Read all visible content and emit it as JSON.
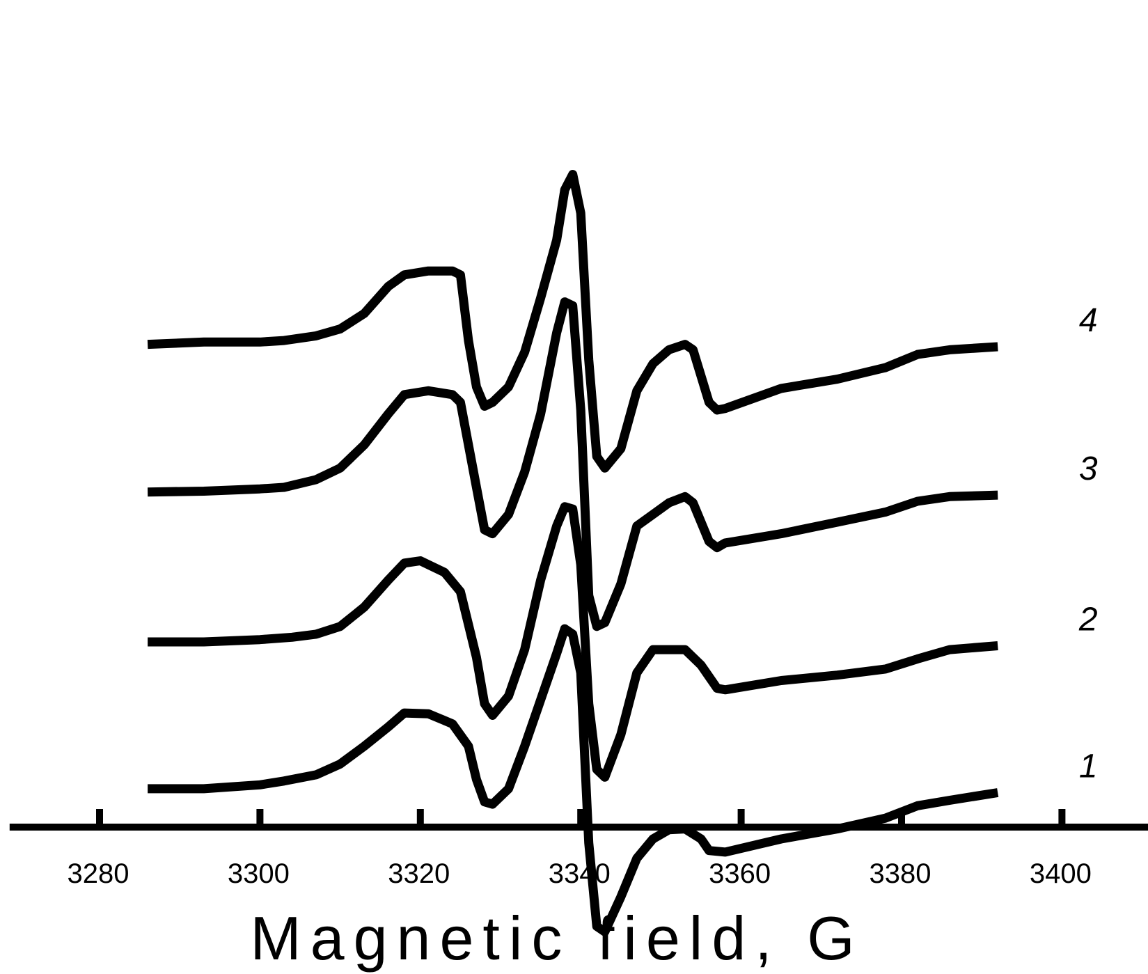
{
  "chart_data": {
    "type": "line",
    "title": "",
    "xlabel": "Magnetic field, G",
    "ylabel": "",
    "xlim": [
      3270,
      3410
    ],
    "x_ticks": [
      3280,
      3300,
      3320,
      3340,
      3360,
      3380,
      3400
    ],
    "x_tick_labels": [
      "3280",
      "3300",
      "3320",
      "3340",
      "3360",
      "3380",
      "3400"
    ],
    "y_axis_visible": false,
    "grid": false,
    "legend": "none",
    "colors": {
      "line": "#000000",
      "axis": "#000000",
      "background": "#ffffff"
    },
    "series": [
      {
        "label": "1",
        "points": [
          [
            3286,
            -3.9
          ],
          [
            3293,
            -3.9
          ],
          [
            3300,
            -3.85
          ],
          [
            3303,
            -3.8
          ],
          [
            3307,
            -3.72
          ],
          [
            3310,
            -3.58
          ],
          [
            3313,
            -3.35
          ],
          [
            3316,
            -3.1
          ],
          [
            3318,
            -2.92
          ],
          [
            3321,
            -2.93
          ],
          [
            3324,
            -3.06
          ],
          [
            3326,
            -3.35
          ],
          [
            3327,
            -3.78
          ],
          [
            3328,
            -4.07
          ],
          [
            3329,
            -4.1
          ],
          [
            3331,
            -3.9
          ],
          [
            3333,
            -3.35
          ],
          [
            3335,
            -2.75
          ],
          [
            3337,
            -2.15
          ],
          [
            3338,
            -1.83
          ],
          [
            3339,
            -1.9
          ],
          [
            3340,
            -2.4
          ],
          [
            3341,
            -4.6
          ],
          [
            3342,
            -5.68
          ],
          [
            3343,
            -5.75
          ],
          [
            3345,
            -5.3
          ],
          [
            3347,
            -4.8
          ],
          [
            3349,
            -4.55
          ],
          [
            3351,
            -4.43
          ],
          [
            3353,
            -4.42
          ],
          [
            3355,
            -4.55
          ],
          [
            3356,
            -4.7
          ],
          [
            3358,
            -4.72
          ],
          [
            3365,
            -4.55
          ],
          [
            3372,
            -4.42
          ],
          [
            3378,
            -4.28
          ],
          [
            3382,
            -4.12
          ],
          [
            3386,
            -4.05
          ],
          [
            3392,
            -3.95
          ]
        ]
      },
      {
        "label": "2",
        "points": [
          [
            3286,
            -2.0
          ],
          [
            3293,
            -2.0
          ],
          [
            3300,
            -1.97
          ],
          [
            3304,
            -1.94
          ],
          [
            3307,
            -1.9
          ],
          [
            3310,
            -1.8
          ],
          [
            3313,
            -1.55
          ],
          [
            3316,
            -1.2
          ],
          [
            3318,
            -0.98
          ],
          [
            3320,
            -0.95
          ],
          [
            3323,
            -1.1
          ],
          [
            3325,
            -1.35
          ],
          [
            3327,
            -2.2
          ],
          [
            3328,
            -2.8
          ],
          [
            3329,
            -2.95
          ],
          [
            3331,
            -2.7
          ],
          [
            3333,
            -2.1
          ],
          [
            3335,
            -1.2
          ],
          [
            3337,
            -0.5
          ],
          [
            3338,
            -0.25
          ],
          [
            3339,
            -0.28
          ],
          [
            3340,
            -1.0
          ],
          [
            3341,
            -2.8
          ],
          [
            3342,
            -3.65
          ],
          [
            3343,
            -3.75
          ],
          [
            3345,
            -3.2
          ],
          [
            3347,
            -2.4
          ],
          [
            3349,
            -2.1
          ],
          [
            3351,
            -2.1
          ],
          [
            3353,
            -2.1
          ],
          [
            3355,
            -2.3
          ],
          [
            3357,
            -2.6
          ],
          [
            3358,
            -2.62
          ],
          [
            3365,
            -2.5
          ],
          [
            3372,
            -2.43
          ],
          [
            3378,
            -2.35
          ],
          [
            3382,
            -2.22
          ],
          [
            3386,
            -2.1
          ],
          [
            3392,
            -2.05
          ]
        ]
      },
      {
        "label": "3",
        "points": [
          [
            3286,
            -0.06
          ],
          [
            3293,
            -0.05
          ],
          [
            3300,
            -0.02
          ],
          [
            3303,
            0.0
          ],
          [
            3307,
            0.1
          ],
          [
            3310,
            0.25
          ],
          [
            3313,
            0.55
          ],
          [
            3316,
            0.95
          ],
          [
            3318,
            1.2
          ],
          [
            3321,
            1.25
          ],
          [
            3324,
            1.2
          ],
          [
            3325,
            1.1
          ],
          [
            3327,
            0.0
          ],
          [
            3328,
            -0.55
          ],
          [
            3329,
            -0.6
          ],
          [
            3331,
            -0.35
          ],
          [
            3333,
            0.2
          ],
          [
            3335,
            0.95
          ],
          [
            3337,
            2.0
          ],
          [
            3338,
            2.4
          ],
          [
            3339,
            2.35
          ],
          [
            3340,
            1.0
          ],
          [
            3341,
            -1.4
          ],
          [
            3342,
            -1.8
          ],
          [
            3343,
            -1.75
          ],
          [
            3345,
            -1.25
          ],
          [
            3347,
            -0.5
          ],
          [
            3349,
            -0.35
          ],
          [
            3351,
            -0.2
          ],
          [
            3353,
            -0.12
          ],
          [
            3354,
            -0.2
          ],
          [
            3356,
            -0.7
          ],
          [
            3357,
            -0.78
          ],
          [
            3358,
            -0.72
          ],
          [
            3365,
            -0.6
          ],
          [
            3372,
            -0.45
          ],
          [
            3378,
            -0.32
          ],
          [
            3382,
            -0.18
          ],
          [
            3386,
            -0.12
          ],
          [
            3392,
            -0.1
          ]
        ]
      },
      {
        "label": "4",
        "points": [
          [
            3286,
            1.85
          ],
          [
            3293,
            1.88
          ],
          [
            3300,
            1.88
          ],
          [
            3303,
            1.9
          ],
          [
            3307,
            1.96
          ],
          [
            3310,
            2.05
          ],
          [
            3313,
            2.25
          ],
          [
            3316,
            2.6
          ],
          [
            3318,
            2.75
          ],
          [
            3321,
            2.8
          ],
          [
            3324,
            2.8
          ],
          [
            3325,
            2.75
          ],
          [
            3326,
            1.9
          ],
          [
            3327,
            1.3
          ],
          [
            3328,
            1.05
          ],
          [
            3329,
            1.1
          ],
          [
            3331,
            1.3
          ],
          [
            3333,
            1.75
          ],
          [
            3335,
            2.45
          ],
          [
            3337,
            3.2
          ],
          [
            3338,
            3.85
          ],
          [
            3339,
            4.05
          ],
          [
            3340,
            3.55
          ],
          [
            3341,
            1.65
          ],
          [
            3342,
            0.4
          ],
          [
            3343,
            0.25
          ],
          [
            3345,
            0.5
          ],
          [
            3347,
            1.25
          ],
          [
            3349,
            1.6
          ],
          [
            3351,
            1.78
          ],
          [
            3353,
            1.85
          ],
          [
            3354,
            1.78
          ],
          [
            3356,
            1.1
          ],
          [
            3357,
            1.0
          ],
          [
            3358,
            1.02
          ],
          [
            3365,
            1.28
          ],
          [
            3372,
            1.4
          ],
          [
            3378,
            1.55
          ],
          [
            3382,
            1.72
          ],
          [
            3386,
            1.78
          ],
          [
            3392,
            1.82
          ]
        ]
      }
    ]
  }
}
